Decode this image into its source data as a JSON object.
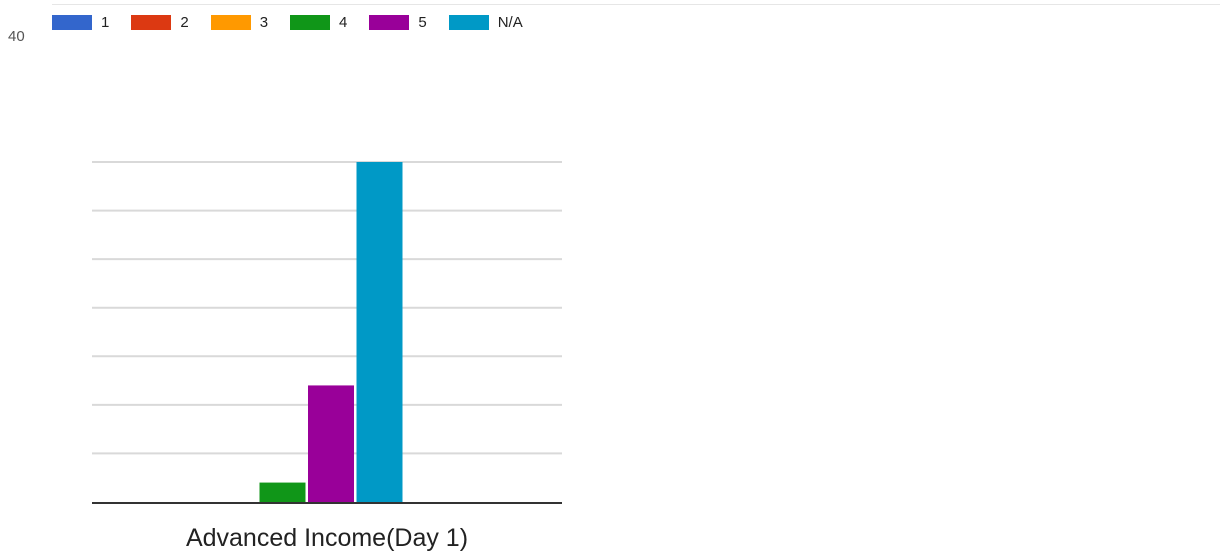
{
  "colors": {
    "grid": "#d9d9d9",
    "baseline": "#333333",
    "text": "#222222"
  },
  "partial_tick_label": "40",
  "chart_data": {
    "type": "bar",
    "categories": [
      "Advanced Income(Day 1)"
    ],
    "series": [
      {
        "name": "1",
        "color": "#3366cc",
        "values": [
          0
        ]
      },
      {
        "name": "2",
        "color": "#dc3912",
        "values": [
          0
        ]
      },
      {
        "name": "3",
        "color": "#ff9900",
        "values": [
          0
        ]
      },
      {
        "name": "4",
        "color": "#109618",
        "values": [
          2
        ]
      },
      {
        "name": "5",
        "color": "#990099",
        "values": [
          12
        ]
      },
      {
        "name": "N/A",
        "color": "#0099c6",
        "values": [
          35
        ]
      }
    ],
    "ylim": [
      0,
      35
    ],
    "gridline_values": [
      0,
      5,
      10,
      15,
      20,
      25,
      30,
      35
    ],
    "grid": true,
    "legend_position": "top",
    "title": "",
    "xlabel": "",
    "ylabel": ""
  }
}
